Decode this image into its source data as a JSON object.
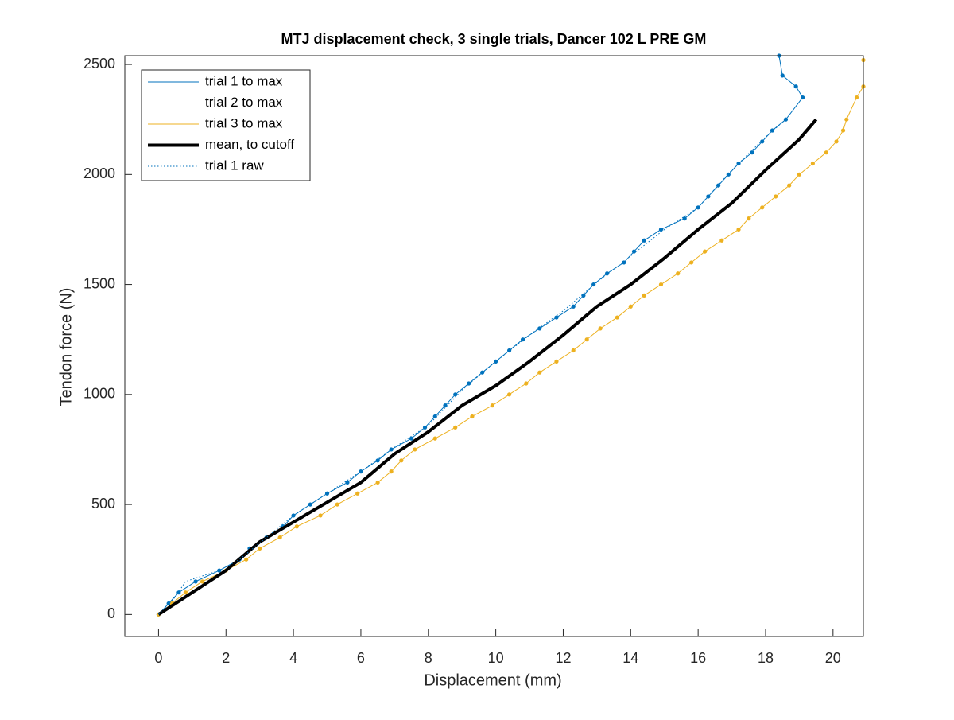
{
  "chart_data": {
    "type": "line",
    "title": "MTJ displacement check, 3 single trials, Dancer 102 L PRE GM",
    "x_label": "Displacement (mm)",
    "y_label": "Tendon force (N)",
    "xlim": [
      -1,
      20.9
    ],
    "ylim": [
      -100,
      2540
    ],
    "xticks": [
      0,
      2,
      4,
      6,
      8,
      10,
      12,
      14,
      16,
      18,
      20
    ],
    "yticks": [
      0,
      500,
      1000,
      1500,
      2000,
      2500
    ],
    "legend": "upper-left",
    "series": [
      {
        "name": "trial 1 to max",
        "color": "#0072BD",
        "style": "solid",
        "markers": true,
        "x": [
          0,
          0.3,
          0.6,
          1.1,
          1.8,
          2.4,
          2.7,
          3.2,
          3.7,
          4.0,
          4.5,
          5.0,
          5.6,
          6.0,
          6.5,
          6.9,
          7.5,
          7.9,
          8.2,
          8.5,
          8.8,
          9.2,
          9.6,
          10.0,
          10.4,
          10.8,
          11.3,
          11.8,
          12.3,
          12.6,
          12.9,
          13.3,
          13.8,
          14.1,
          14.4,
          14.9,
          15.6,
          16.0,
          16.3,
          16.6,
          16.9,
          17.2,
          17.6,
          17.9,
          18.2,
          18.6,
          19.1,
          18.9,
          18.5,
          18.4
        ],
        "values": [
          0,
          50,
          100,
          150,
          200,
          250,
          300,
          350,
          400,
          450,
          500,
          550,
          600,
          650,
          700,
          750,
          800,
          850,
          900,
          950,
          1000,
          1050,
          1100,
          1150,
          1200,
          1250,
          1300,
          1350,
          1400,
          1450,
          1500,
          1550,
          1600,
          1650,
          1700,
          1750,
          1800,
          1850,
          1900,
          1950,
          2000,
          2050,
          2100,
          2150,
          2200,
          2250,
          2350,
          2400,
          2450,
          2540
        ]
      },
      {
        "name": "trial 2 to max",
        "color": "#D95319",
        "style": "solid",
        "markers": true,
        "x": [],
        "values": []
      },
      {
        "name": "trial 3 to max",
        "color": "#EDB120",
        "style": "solid",
        "markers": true,
        "x": [
          0,
          0.4,
          0.8,
          1.3,
          2.0,
          2.6,
          3.0,
          3.6,
          4.1,
          4.8,
          5.3,
          5.9,
          6.5,
          6.9,
          7.2,
          7.6,
          8.2,
          8.8,
          9.3,
          9.9,
          10.4,
          10.9,
          11.3,
          11.8,
          12.3,
          12.7,
          13.1,
          13.6,
          14.0,
          14.4,
          14.9,
          15.4,
          15.8,
          16.2,
          16.7,
          17.2,
          17.5,
          17.9,
          18.3,
          18.7,
          19.0,
          19.4,
          19.8,
          20.1,
          20.3,
          20.4,
          20.7,
          20.9,
          20.9
        ],
        "values": [
          0,
          50,
          100,
          150,
          200,
          250,
          300,
          350,
          400,
          450,
          500,
          550,
          600,
          650,
          700,
          750,
          800,
          850,
          900,
          950,
          1000,
          1050,
          1100,
          1150,
          1200,
          1250,
          1300,
          1350,
          1400,
          1450,
          1500,
          1550,
          1600,
          1650,
          1700,
          1750,
          1800,
          1850,
          1900,
          1950,
          2000,
          2050,
          2100,
          2150,
          2200,
          2250,
          2350,
          2400,
          2520
        ]
      },
      {
        "name": "mean, to cutoff",
        "color": "#000000",
        "style": "thick",
        "markers": false,
        "x": [
          0,
          0.5,
          1,
          2,
          3,
          4,
          5,
          6,
          7,
          8,
          9,
          10,
          11,
          12,
          13,
          14,
          15,
          16,
          17,
          18,
          19,
          19.5
        ],
        "values": [
          0,
          50,
          100,
          200,
          330,
          420,
          510,
          600,
          730,
          830,
          950,
          1040,
          1150,
          1270,
          1400,
          1500,
          1620,
          1750,
          1870,
          2020,
          2160,
          2250
        ]
      },
      {
        "name": "trial 1 raw",
        "color": "#0072BD",
        "style": "dotted",
        "markers": false,
        "x": [
          0,
          0.5,
          0.8,
          1.8,
          2.4,
          3.2,
          4.0,
          5.0,
          6.0,
          7.0,
          8.0,
          9.0,
          10.0,
          11.0,
          12.0,
          13.0,
          14.0,
          15.0,
          16.0,
          17.0,
          18.0,
          18.6
        ],
        "values": [
          0,
          80,
          150,
          200,
          250,
          350,
          450,
          550,
          650,
          760,
          860,
          1020,
          1150,
          1270,
          1380,
          1510,
          1630,
          1750,
          1850,
          2020,
          2170,
          2250
        ]
      }
    ]
  }
}
